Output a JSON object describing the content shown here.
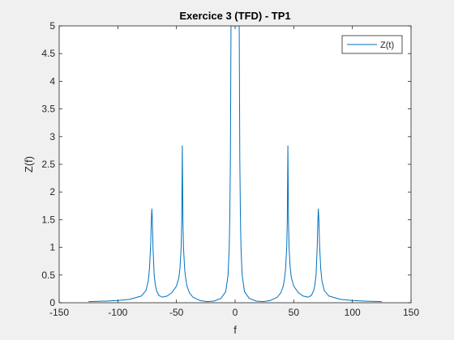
{
  "chart_data": {
    "type": "line",
    "title": "Exercice 3 (TFD) - TP1",
    "xlabel": "f",
    "ylabel": "Z(f)",
    "xlim": [
      -150,
      150
    ],
    "ylim": [
      0,
      5
    ],
    "xticks": [
      -150,
      -100,
      -50,
      0,
      50,
      100,
      150
    ],
    "xtick_labels": [
      "-150",
      "-100",
      "-50",
      "0",
      "50",
      "100",
      "150"
    ],
    "yticks": [
      0,
      0.5,
      1,
      1.5,
      2,
      2.5,
      3,
      3.5,
      4,
      4.5,
      5
    ],
    "ytick_labels": [
      "0",
      "0.5",
      "1",
      "1.5",
      "2",
      "2.5",
      "3",
      "3.5",
      "4",
      "4.5",
      "5"
    ],
    "grid": false,
    "legend": {
      "entries": [
        "Z(t)"
      ],
      "position": "top-right"
    },
    "series": [
      {
        "name": "Z(t)",
        "color": "#0072bd",
        "x": [
          -125,
          -110,
          -100,
          -90,
          -80,
          -76,
          -74,
          -73,
          -72,
          -71.5,
          -71,
          -70.5,
          -70,
          -69,
          -68,
          -67,
          -65,
          -62,
          -58,
          -54,
          -50,
          -48,
          -47,
          -46,
          -45.5,
          -45,
          -44.5,
          -44,
          -43,
          -42,
          -41,
          -39,
          -36,
          -30,
          -24,
          -18,
          -12,
          -8,
          -6,
          -5,
          -4.5,
          -4,
          -3.5,
          -3,
          -2.5,
          -2,
          -1,
          0,
          1,
          2,
          2.5,
          3,
          3.5,
          4,
          4.5,
          5,
          6,
          8,
          12,
          18,
          24,
          30,
          36,
          39,
          41,
          42,
          43,
          44,
          44.5,
          45,
          45.5,
          46,
          47,
          48,
          50,
          54,
          58,
          62,
          65,
          67,
          68,
          69,
          70,
          70.5,
          71,
          71.5,
          72,
          73,
          74,
          76,
          80,
          90,
          100,
          110,
          125
        ],
        "y": [
          0.02,
          0.03,
          0.04,
          0.06,
          0.12,
          0.22,
          0.4,
          0.62,
          1.05,
          1.45,
          1.7,
          1.45,
          1.0,
          0.5,
          0.32,
          0.22,
          0.13,
          0.1,
          0.12,
          0.18,
          0.3,
          0.45,
          0.62,
          1.0,
          1.5,
          2.84,
          1.5,
          1.0,
          0.6,
          0.42,
          0.3,
          0.18,
          0.1,
          0.04,
          0.02,
          0.03,
          0.08,
          0.2,
          0.5,
          1.0,
          1.6,
          2.6,
          5,
          5,
          5,
          5,
          5,
          5,
          5,
          5,
          5,
          5,
          5,
          2.6,
          1.6,
          1.0,
          0.5,
          0.2,
          0.08,
          0.03,
          0.02,
          0.04,
          0.1,
          0.18,
          0.3,
          0.42,
          0.6,
          1.0,
          1.5,
          2.84,
          1.5,
          1.0,
          0.62,
          0.45,
          0.3,
          0.18,
          0.12,
          0.1,
          0.13,
          0.22,
          0.32,
          0.5,
          1.0,
          1.45,
          1.7,
          1.45,
          1.05,
          0.62,
          0.4,
          0.22,
          0.12,
          0.06,
          0.04,
          0.03,
          0.02
        ]
      }
    ]
  }
}
